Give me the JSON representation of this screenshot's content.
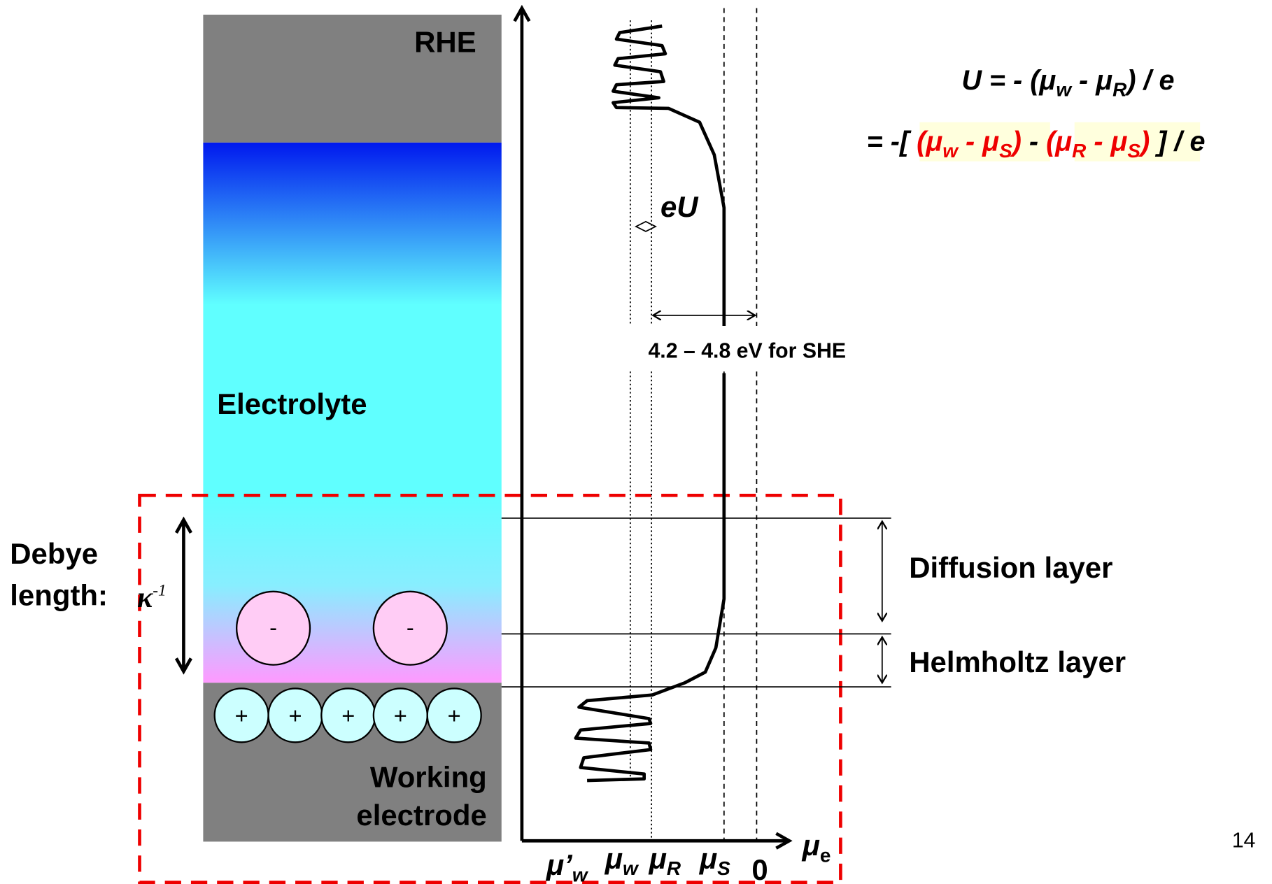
{
  "top_electrode": "RHE",
  "electrolyte": "Electrolyte",
  "working_electrode": [
    "Working",
    "electrode"
  ],
  "debye": {
    "line1": "Debye",
    "line2": "length:",
    "symbol": "κ",
    "exponent": "-1"
  },
  "ions": {
    "negative": [
      "-",
      "-"
    ],
    "positive": [
      "+",
      "+",
      "+",
      "+",
      "+"
    ]
  },
  "layers": [
    "Diffusion layer",
    "Helmholtz layer"
  ],
  "potential_label": "eU",
  "gap_label": "4.2 – 4.8 eV for SHE",
  "axis_label": {
    "symbol": "μ",
    "sub": "e"
  },
  "x_labels": [
    {
      "symbol": "μ’",
      "sub": "w"
    },
    {
      "symbol": "μ",
      "sub": "w"
    },
    {
      "symbol": "μ",
      "sub": "R"
    },
    {
      "symbol": "μ",
      "sub": "S"
    },
    {
      "symbol": "0"
    }
  ],
  "equation": {
    "line1": [
      "U = - (",
      "μ",
      "w",
      " - ",
      "μ",
      "R",
      ") / e"
    ],
    "line2": [
      "= -[ ",
      "(",
      "μ",
      "w",
      " - ",
      "μ",
      "S",
      ")",
      " - ",
      "(",
      "μ",
      "R",
      " - ",
      "μ",
      "S",
      ")",
      " ] / e"
    ]
  },
  "page_number": "14"
}
